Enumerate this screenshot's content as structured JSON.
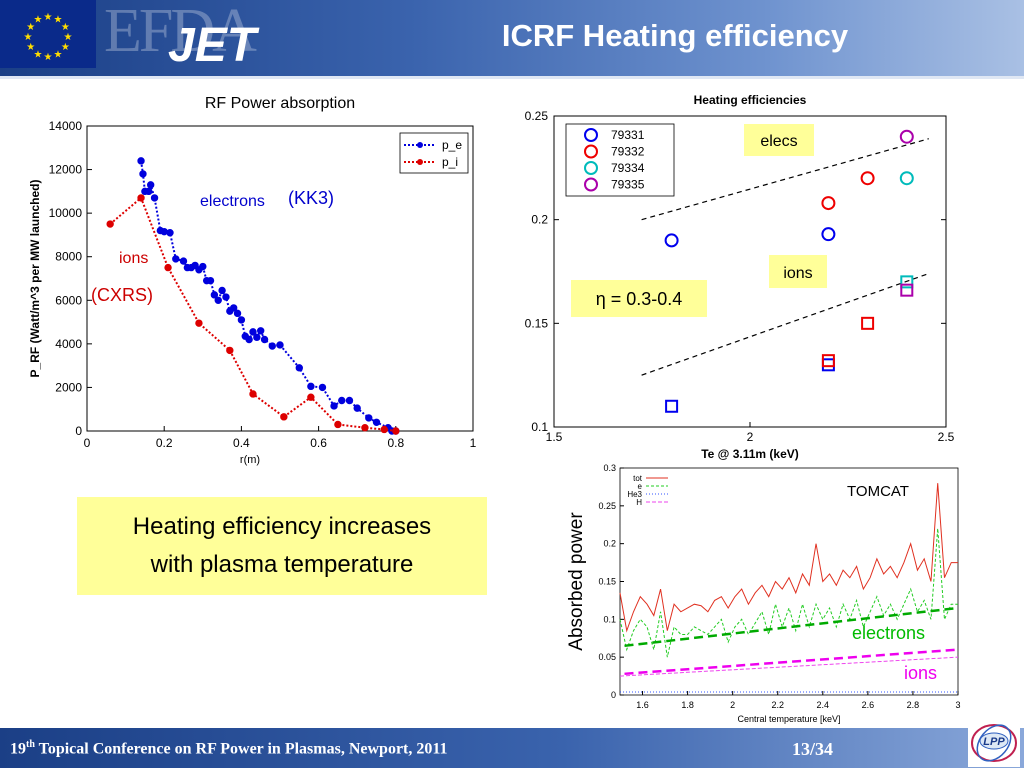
{
  "header": {
    "title": "ICRF Heating efficiency",
    "logo_efda": "EFDA",
    "logo_jet": "JET"
  },
  "footer": {
    "conf_prefix": "19",
    "conf_sup": "th",
    "conf_rest": " Topical Conference on RF Power in Plasmas, Newport, 2011",
    "page": "13/34"
  },
  "callout": {
    "line1": "Heating efficiency increases",
    "line2": "with plasma temperature"
  },
  "chart_data": [
    {
      "type": "line",
      "title": "RF Power absorption",
      "xlabel": "r(m)",
      "ylabel": "P_RF (Watt/m^3 per MW launched)",
      "xlim": [
        0,
        1
      ],
      "ylim": [
        0,
        14000
      ],
      "xticks": [
        "0",
        "0.2",
        "0.4",
        "0.6",
        "0.8",
        "1"
      ],
      "yticks": [
        "0",
        "2000",
        "4000",
        "6000",
        "8000",
        "10000",
        "12000",
        "14000"
      ],
      "legend": [
        "p_e",
        "p_i"
      ],
      "legend_position": "top-right",
      "annotations": [
        {
          "text": "electrons",
          "color": "#0000cc"
        },
        {
          "text": "(KK3)",
          "color": "#0000cc"
        },
        {
          "text": "ions",
          "color": "#cc0000"
        },
        {
          "text": "(CXRS)",
          "color": "#cc0000"
        }
      ],
      "series": [
        {
          "name": "p_e",
          "color": "#0000dd",
          "x": [
            0.14,
            0.145,
            0.15,
            0.16,
            0.165,
            0.175,
            0.19,
            0.2,
            0.215,
            0.23,
            0.25,
            0.26,
            0.27,
            0.28,
            0.29,
            0.3,
            0.31,
            0.32,
            0.33,
            0.34,
            0.35,
            0.36,
            0.37,
            0.38,
            0.39,
            0.4,
            0.41,
            0.42,
            0.43,
            0.44,
            0.45,
            0.46,
            0.48,
            0.5,
            0.55,
            0.58,
            0.61,
            0.64,
            0.66,
            0.68,
            0.7,
            0.73,
            0.75,
            0.78,
            0.79,
            0.8
          ],
          "y": [
            12400,
            11800,
            11000,
            11000,
            11300,
            10700,
            9200,
            9150,
            9100,
            7900,
            7800,
            7500,
            7500,
            7600,
            7400,
            7550,
            6900,
            6900,
            6250,
            6000,
            6450,
            6150,
            5500,
            5650,
            5400,
            5100,
            4350,
            4200,
            4550,
            4300,
            4600,
            4200,
            3900,
            3950,
            2900,
            2050,
            2000,
            1150,
            1400,
            1400,
            1050,
            600,
            400,
            150,
            0,
            0
          ]
        },
        {
          "name": "p_i",
          "color": "#dd0000",
          "x": [
            0.06,
            0.14,
            0.21,
            0.29,
            0.37,
            0.43,
            0.51,
            0.58,
            0.65,
            0.72,
            0.77,
            0.8
          ],
          "y": [
            9500,
            10700,
            7500,
            4950,
            3700,
            1700,
            650,
            1550,
            300,
            150,
            70,
            0
          ]
        }
      ]
    },
    {
      "type": "scatter",
      "title": "Heating efficiencies",
      "xlabel": "Te @ 3.11m (keV)",
      "ylabel": "",
      "xlim": [
        1.5,
        2.5
      ],
      "ylim": [
        0.1,
        0.25
      ],
      "xticks": [
        "1.5",
        "2",
        "2.5"
      ],
      "yticks": [
        "0.1",
        "0.15",
        "0.2",
        "0.25"
      ],
      "legend": [
        "79331",
        "79332",
        "79334",
        "79335"
      ],
      "legend_position": "top-left",
      "annotations": [
        "elecs",
        "ions",
        "η = 0.3-0.4"
      ],
      "series": [
        {
          "name": "79331",
          "color": "#0000ee",
          "elec": [
            [
              1.8,
              0.19
            ],
            [
              2.2,
              0.193
            ]
          ],
          "ion": [
            [
              1.8,
              0.11
            ],
            [
              2.2,
              0.13
            ]
          ]
        },
        {
          "name": "79332",
          "color": "#ee0000",
          "elec": [
            [
              2.2,
              0.208
            ],
            [
              2.3,
              0.22
            ]
          ],
          "ion": [
            [
              2.2,
              0.132
            ],
            [
              2.3,
              0.15
            ]
          ]
        },
        {
          "name": "79334",
          "color": "#00bbbb",
          "elec": [
            [
              2.4,
              0.22
            ]
          ],
          "ion": [
            [
              2.4,
              0.17
            ]
          ]
        },
        {
          "name": "79335",
          "color": "#aa00aa",
          "elec": [
            [
              2.4,
              0.24
            ]
          ],
          "ion": [
            [
              2.4,
              0.166
            ]
          ]
        }
      ],
      "trend_lines": [
        {
          "label": "elecs",
          "from": [
            1.8,
            0.2
          ],
          "to": [
            2.4,
            0.24
          ]
        },
        {
          "label": "ions",
          "from": [
            1.8,
            0.125
          ],
          "to": [
            2.4,
            0.175
          ]
        }
      ]
    },
    {
      "type": "line",
      "title": "TOMCAT",
      "xlabel": "Central temperature [keV]",
      "ylabel": "Absorbed power",
      "xlim": [
        1.5,
        3
      ],
      "ylim": [
        0,
        0.3
      ],
      "xticks": [
        "1.6",
        "1.8",
        "2",
        "2.2",
        "2.4",
        "2.6",
        "2.8",
        "3"
      ],
      "yticks": [
        "0",
        "0.05",
        "0.1",
        "0.15",
        "0.2",
        "0.25",
        "0.3"
      ],
      "legend": [
        "tot",
        "e",
        "He3",
        "H"
      ],
      "legend_position": "top-left",
      "annotations": [
        {
          "text": "electrons",
          "color": "#00bb00"
        },
        {
          "text": "ions",
          "color": "#ee00ee"
        }
      ],
      "series": [
        {
          "name": "tot",
          "color": "#e03020",
          "x": [
            1.5,
            1.53,
            1.56,
            1.59,
            1.62,
            1.65,
            1.68,
            1.71,
            1.74,
            1.77,
            1.8,
            1.83,
            1.86,
            1.89,
            1.92,
            1.95,
            1.98,
            2.01,
            2.04,
            2.07,
            2.1,
            2.13,
            2.16,
            2.19,
            2.22,
            2.25,
            2.28,
            2.31,
            2.34,
            2.37,
            2.4,
            2.43,
            2.46,
            2.49,
            2.52,
            2.55,
            2.58,
            2.61,
            2.64,
            2.67,
            2.7,
            2.73,
            2.76,
            2.79,
            2.82,
            2.85,
            2.88,
            2.91,
            2.94,
            2.97,
            3.0
          ],
          "y": [
            0.135,
            0.085,
            0.11,
            0.13,
            0.12,
            0.105,
            0.14,
            0.085,
            0.12,
            0.11,
            0.115,
            0.12,
            0.118,
            0.11,
            0.125,
            0.13,
            0.115,
            0.13,
            0.14,
            0.12,
            0.135,
            0.145,
            0.13,
            0.15,
            0.14,
            0.155,
            0.135,
            0.16,
            0.145,
            0.2,
            0.15,
            0.16,
            0.145,
            0.165,
            0.155,
            0.17,
            0.14,
            0.155,
            0.18,
            0.16,
            0.17,
            0.155,
            0.175,
            0.2,
            0.165,
            0.18,
            0.15,
            0.28,
            0.155,
            0.175,
            0.175
          ]
        },
        {
          "name": "e",
          "color": "#22cc22",
          "x": [
            1.5,
            1.53,
            1.56,
            1.59,
            1.62,
            1.65,
            1.68,
            1.71,
            1.74,
            1.77,
            1.8,
            1.83,
            1.86,
            1.89,
            1.92,
            1.95,
            1.98,
            2.01,
            2.04,
            2.07,
            2.1,
            2.13,
            2.16,
            2.19,
            2.22,
            2.25,
            2.28,
            2.31,
            2.34,
            2.37,
            2.4,
            2.43,
            2.46,
            2.49,
            2.52,
            2.55,
            2.58,
            2.61,
            2.64,
            2.67,
            2.7,
            2.73,
            2.76,
            2.79,
            2.82,
            2.85,
            2.88,
            2.91,
            2.94,
            2.97,
            3.0
          ],
          "y": [
            0.1,
            0.06,
            0.085,
            0.1,
            0.09,
            0.06,
            0.11,
            0.05,
            0.09,
            0.08,
            0.08,
            0.09,
            0.085,
            0.08,
            0.09,
            0.1,
            0.07,
            0.09,
            0.1,
            0.08,
            0.095,
            0.11,
            0.08,
            0.12,
            0.09,
            0.115,
            0.085,
            0.12,
            0.09,
            0.12,
            0.1,
            0.115,
            0.09,
            0.12,
            0.1,
            0.125,
            0.09,
            0.11,
            0.13,
            0.105,
            0.12,
            0.1,
            0.12,
            0.14,
            0.11,
            0.125,
            0.1,
            0.22,
            0.1,
            0.12,
            0.12
          ]
        },
        {
          "name": "He3",
          "color": "#3355ff",
          "x": [
            1.5,
            3.0
          ],
          "y": [
            0.004,
            0.004
          ]
        },
        {
          "name": "H",
          "color": "#ee44ee",
          "x": [
            1.5,
            3.0
          ],
          "y": [
            0.025,
            0.05
          ]
        }
      ],
      "trend_lines": [
        {
          "label": "electrons",
          "color": "#00aa00",
          "from": [
            1.52,
            0.065
          ],
          "to": [
            3.0,
            0.115
          ]
        },
        {
          "label": "ions",
          "color": "#ee00ee",
          "from": [
            1.52,
            0.028
          ],
          "to": [
            3.0,
            0.06
          ]
        }
      ]
    }
  ]
}
